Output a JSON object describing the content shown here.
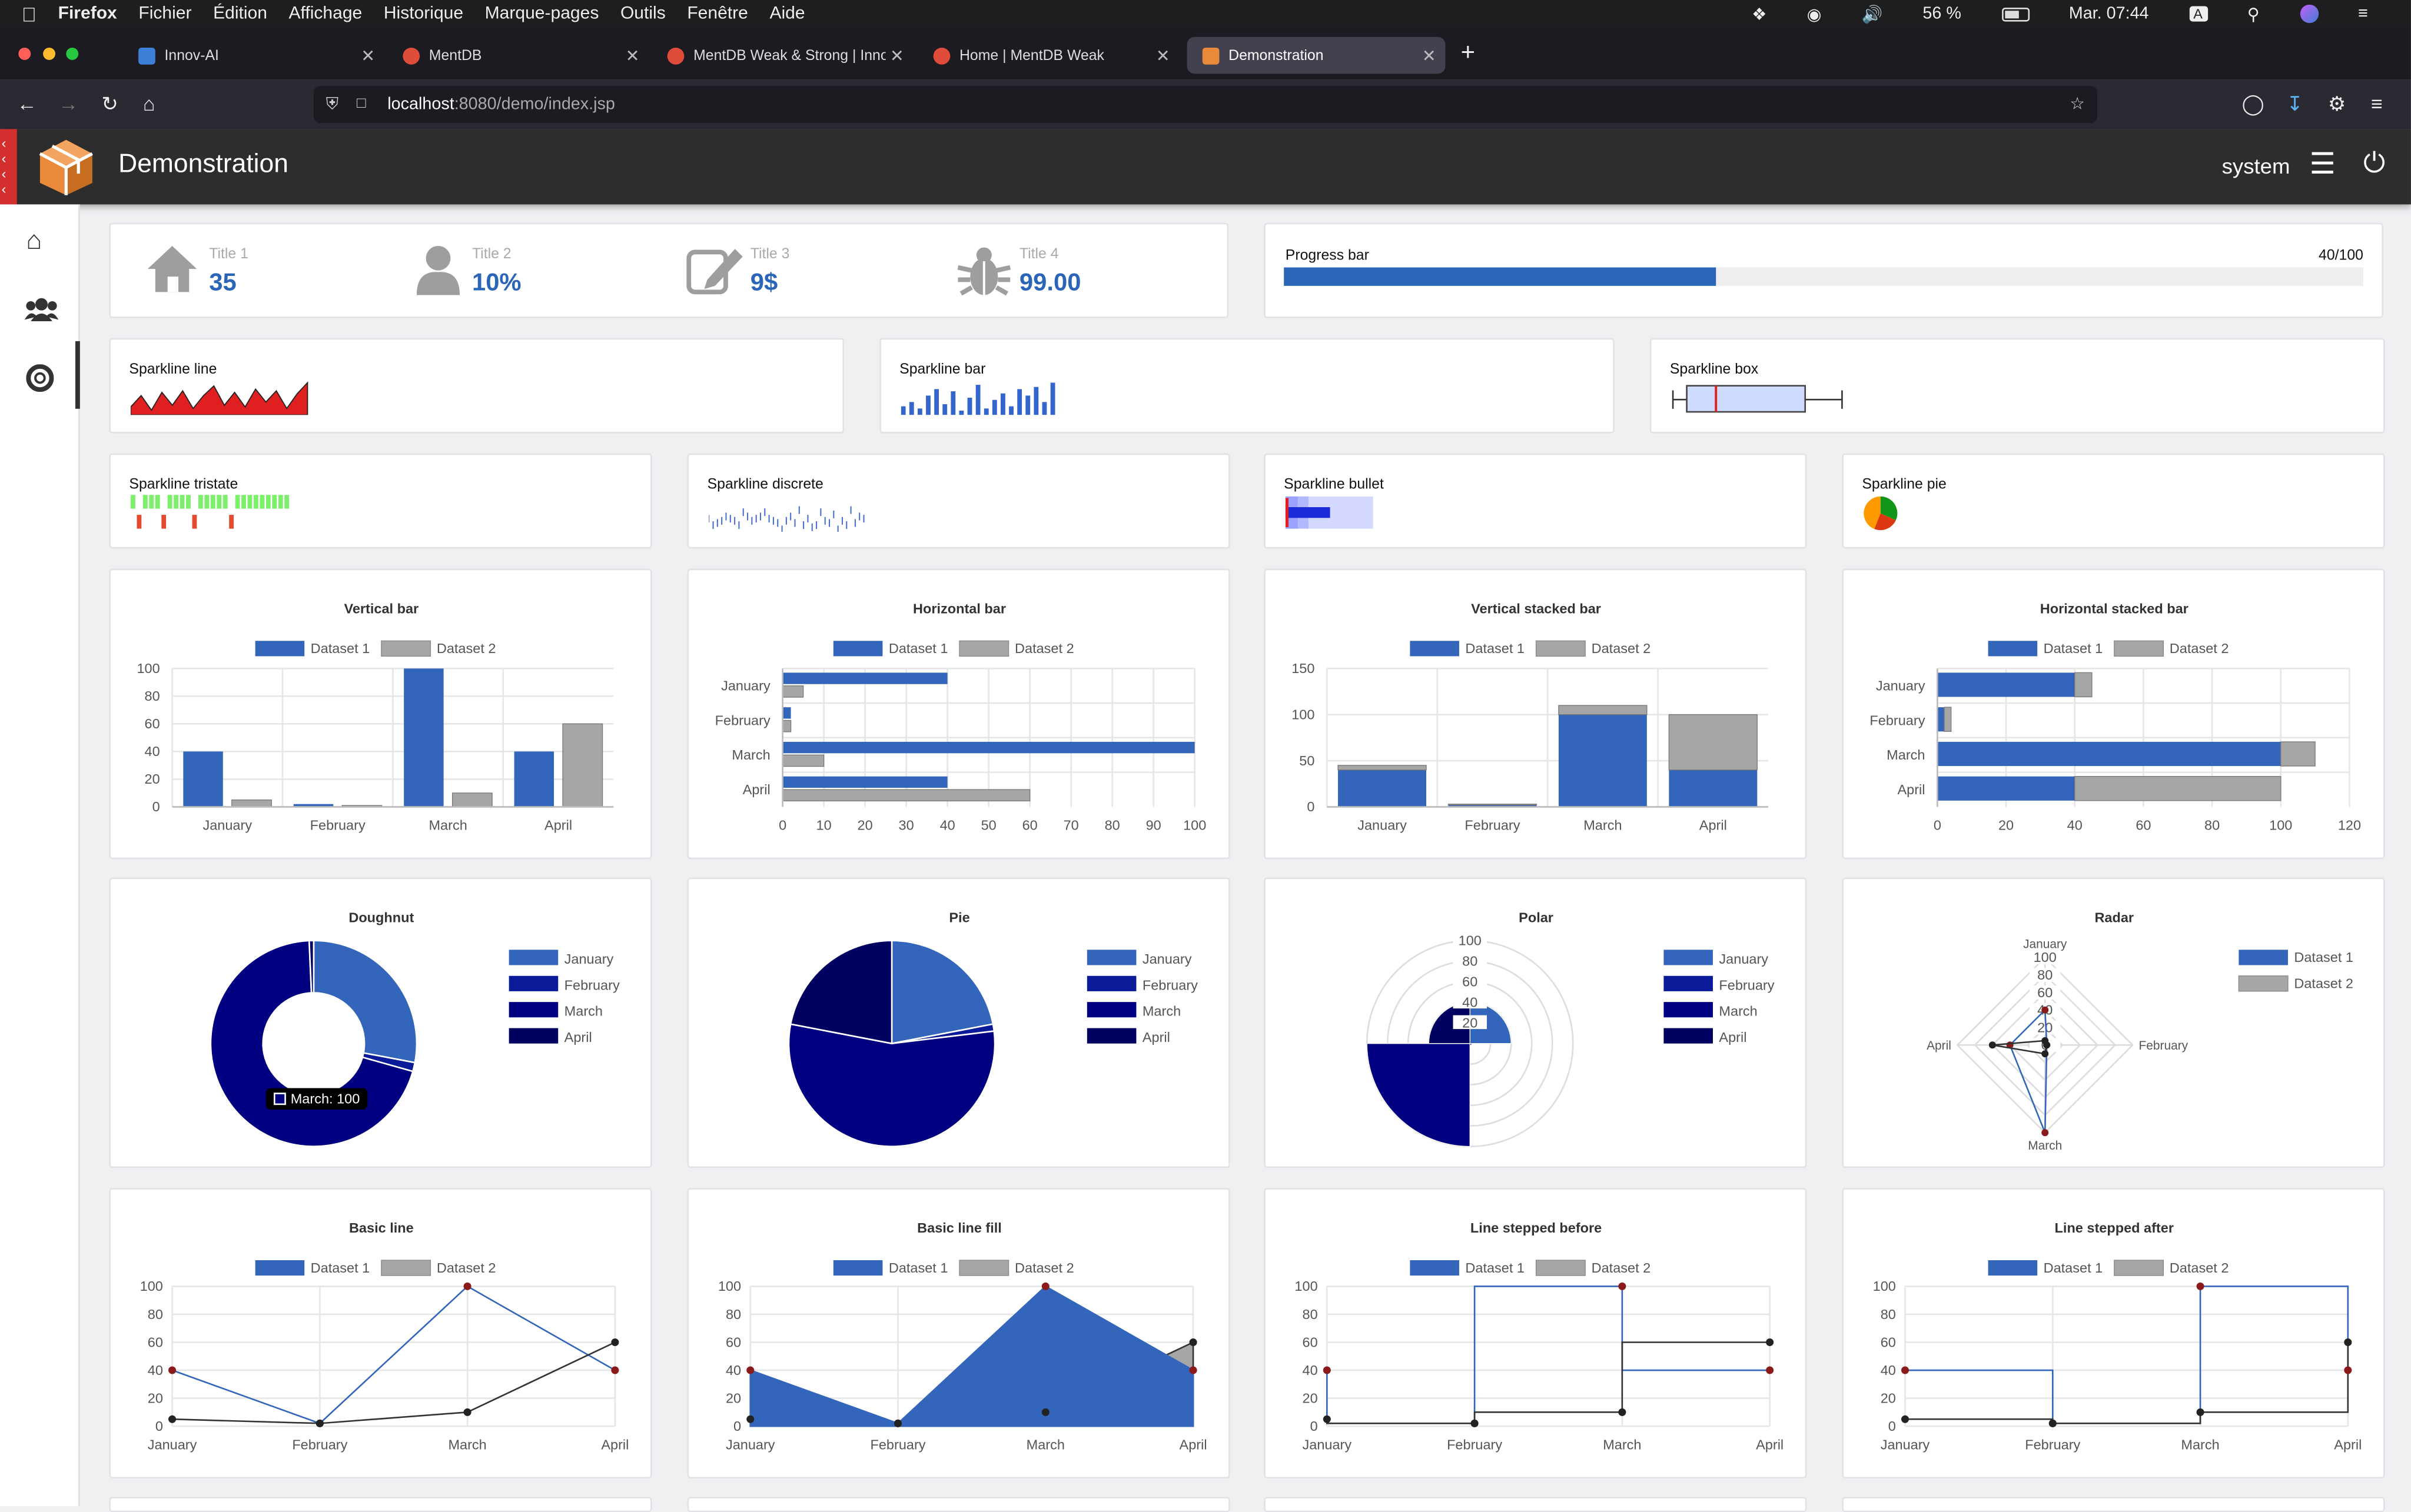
{
  "menubar": {
    "app": "Firefox",
    "items": [
      "Fichier",
      "Édition",
      "Affichage",
      "Historique",
      "Marque-pages",
      "Outils",
      "Fenêtre",
      "Aide"
    ],
    "battery": "56 %",
    "clock": "Mar. 07:44"
  },
  "tabs": [
    {
      "title": "Innov-AI",
      "color": "#3d7fd6"
    },
    {
      "title": "MentDB",
      "color": "#e04c3a"
    },
    {
      "title": "MentDB Weak & Strong | Innov-",
      "color": "#e04c3a"
    },
    {
      "title": "Home | MentDB Weak",
      "color": "#e04c3a"
    },
    {
      "title": "Demonstration",
      "color": "#e9893a"
    }
  ],
  "url": {
    "host": "localhost",
    "rest": ":8080/demo/index.jsp"
  },
  "header": {
    "title": "Demonstration",
    "user": "system"
  },
  "stats": [
    {
      "title": "Title 1",
      "value": "35",
      "icon": "home-icon"
    },
    {
      "title": "Title 2",
      "value": "10%",
      "icon": "user-icon"
    },
    {
      "title": "Title 3",
      "value": "9$",
      "icon": "edit-icon"
    },
    {
      "title": "Title 4",
      "value": "99.00",
      "icon": "bug-icon"
    }
  ],
  "progress": {
    "label": "Progress bar",
    "text": "40/100",
    "value": 40,
    "max": 100
  },
  "sparklines": {
    "line": "Sparkline line",
    "bar": "Sparkline bar",
    "box": "Sparkline box",
    "tristate": "Sparkline tristate",
    "discrete": "Sparkline discrete",
    "bullet": "Sparkline bullet",
    "pie": "Sparkline pie",
    "line_values": [
      5,
      12,
      3,
      14,
      6,
      15,
      4,
      12,
      18,
      6,
      14,
      5,
      16,
      8,
      15,
      4,
      13,
      20
    ],
    "bar_values": [
      4,
      6,
      3,
      9,
      12,
      5,
      11,
      2,
      8,
      14,
      3,
      7,
      10,
      4,
      12,
      9,
      13,
      6,
      15
    ],
    "tristate_values": [
      1,
      -1,
      1,
      1,
      1,
      -1,
      1,
      1,
      1,
      1,
      -1,
      1,
      1,
      1,
      1,
      1,
      -1,
      1,
      1,
      1,
      1,
      1,
      1,
      1,
      1,
      1
    ]
  },
  "colors": {
    "d1": "#3366bb",
    "d2": "#a6a6a6",
    "jan": "#3366bb",
    "feb": "#0b1a99",
    "mar": "#000080",
    "apr": "#000060"
  },
  "chart_data": [
    {
      "type": "bar",
      "title": "Vertical bar",
      "categories": [
        "January",
        "February",
        "March",
        "April"
      ],
      "series": [
        {
          "name": "Dataset 1",
          "values": [
            40,
            2,
            100,
            40
          ]
        },
        {
          "name": "Dataset 2",
          "values": [
            5,
            1,
            10,
            60
          ]
        }
      ],
      "ylim": [
        0,
        100
      ]
    },
    {
      "type": "bar",
      "orientation": "horizontal",
      "title": "Horizontal bar",
      "categories": [
        "January",
        "February",
        "March",
        "April"
      ],
      "series": [
        {
          "name": "Dataset 1",
          "values": [
            40,
            2,
            100,
            40
          ]
        },
        {
          "name": "Dataset 2",
          "values": [
            5,
            2,
            10,
            60
          ]
        }
      ],
      "xlim": [
        0,
        100
      ]
    },
    {
      "type": "bar",
      "stacked": true,
      "title": "Vertical stacked bar",
      "categories": [
        "January",
        "February",
        "March",
        "April"
      ],
      "series": [
        {
          "name": "Dataset 1",
          "values": [
            40,
            2,
            100,
            40
          ]
        },
        {
          "name": "Dataset 2",
          "values": [
            5,
            1,
            10,
            60
          ]
        }
      ],
      "ylim": [
        0,
        150
      ]
    },
    {
      "type": "bar",
      "stacked": true,
      "orientation": "horizontal",
      "title": "Horizontal stacked bar",
      "categories": [
        "January",
        "February",
        "March",
        "April"
      ],
      "series": [
        {
          "name": "Dataset 1",
          "values": [
            40,
            2,
            100,
            40
          ]
        },
        {
          "name": "Dataset 2",
          "values": [
            5,
            2,
            10,
            60
          ]
        }
      ],
      "xlim": [
        0,
        120
      ]
    },
    {
      "type": "pie",
      "variant": "doughnut",
      "title": "Doughnut",
      "categories": [
        "January",
        "February",
        "March",
        "April"
      ],
      "values": [
        40,
        2,
        100,
        1
      ],
      "tooltip": "March: 100"
    },
    {
      "type": "pie",
      "title": "Pie",
      "categories": [
        "January",
        "February",
        "March",
        "April"
      ],
      "values": [
        40,
        2,
        100,
        40
      ]
    },
    {
      "type": "pie",
      "variant": "polar",
      "title": "Polar",
      "categories": [
        "January",
        "February",
        "March",
        "April"
      ],
      "values": [
        40,
        2,
        100,
        40
      ],
      "ticks": [
        20,
        40,
        60,
        80,
        100
      ]
    },
    {
      "type": "radar",
      "title": "Radar",
      "axes": [
        "January",
        "February",
        "March",
        "April"
      ],
      "series": [
        {
          "name": "Dataset 1",
          "values": [
            40,
            2,
            100,
            40
          ]
        },
        {
          "name": "Dataset 2",
          "values": [
            5,
            2,
            10,
            60
          ]
        }
      ],
      "ticks": [
        0,
        20,
        40,
        60,
        80,
        100
      ]
    },
    {
      "type": "line",
      "title": "Basic line",
      "categories": [
        "January",
        "February",
        "March",
        "April"
      ],
      "series": [
        {
          "name": "Dataset 1",
          "values": [
            40,
            2,
            100,
            40
          ]
        },
        {
          "name": "Dataset 2",
          "values": [
            5,
            2,
            10,
            60
          ]
        }
      ],
      "ylim": [
        0,
        100
      ]
    },
    {
      "type": "area",
      "title": "Basic line fill",
      "categories": [
        "January",
        "February",
        "March",
        "April"
      ],
      "series": [
        {
          "name": "Dataset 1",
          "values": [
            40,
            2,
            100,
            40
          ]
        },
        {
          "name": "Dataset 2",
          "values": [
            5,
            2,
            10,
            60
          ]
        }
      ],
      "ylim": [
        0,
        100
      ]
    },
    {
      "type": "line",
      "stepped": "before",
      "title": "Line stepped before",
      "categories": [
        "January",
        "February",
        "March",
        "April"
      ],
      "series": [
        {
          "name": "Dataset 1",
          "values": [
            40,
            2,
            100,
            40
          ]
        },
        {
          "name": "Dataset 2",
          "values": [
            5,
            2,
            10,
            60
          ]
        }
      ],
      "ylim": [
        0,
        100
      ]
    },
    {
      "type": "line",
      "stepped": "after",
      "title": "Line stepped after",
      "categories": [
        "January",
        "February",
        "March",
        "April"
      ],
      "series": [
        {
          "name": "Dataset 1",
          "values": [
            40,
            2,
            100,
            40
          ]
        },
        {
          "name": "Dataset 2",
          "values": [
            5,
            2,
            10,
            60
          ]
        }
      ],
      "ylim": [
        0,
        100
      ]
    }
  ]
}
